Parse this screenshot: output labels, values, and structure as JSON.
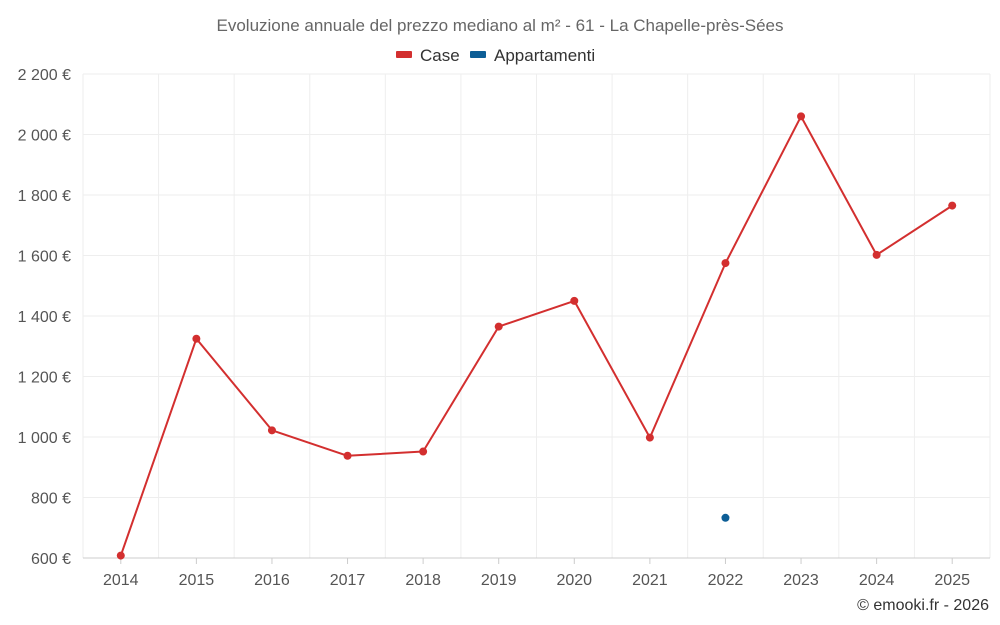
{
  "chart_data": {
    "type": "line",
    "title": "Evoluzione annuale del prezzo mediano al m² - 61 - La Chapelle-près-Sées",
    "categories": [
      "2014",
      "2015",
      "2016",
      "2017",
      "2018",
      "2019",
      "2020",
      "2021",
      "2022",
      "2023",
      "2024",
      "2025"
    ],
    "series": [
      {
        "name": "Case",
        "color": "#d32f2f",
        "values": [
          608,
          1325,
          1022,
          938,
          952,
          1365,
          1450,
          998,
          1575,
          2060,
          1602,
          1765
        ]
      },
      {
        "name": "Appartamenti",
        "color": "#0d5e96",
        "values": [
          null,
          null,
          null,
          null,
          null,
          null,
          null,
          null,
          733,
          null,
          null,
          null
        ]
      }
    ],
    "ylim": [
      600,
      2200
    ],
    "yticks": [
      600,
      800,
      1000,
      1200,
      1400,
      1600,
      1800,
      2000,
      2200
    ],
    "ytick_labels": [
      "600 €",
      "800 €",
      "1 000 €",
      "1 200 €",
      "1 400 €",
      "1 600 €",
      "1 800 €",
      "2 000 €",
      "2 200 €"
    ],
    "grid": true,
    "legend_position": "top-center"
  },
  "credit": "© emooki.fr - 2026"
}
